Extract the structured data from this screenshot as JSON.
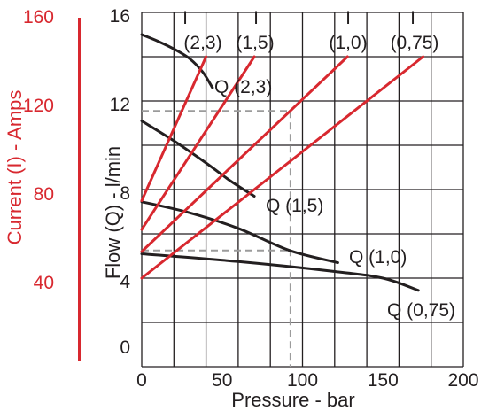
{
  "chart_data": {
    "type": "line",
    "xlabel": "Pressure - bar",
    "ylabel": "Flow (Q) - l/min",
    "y2label": "Current (I) - Amps",
    "xlim": [
      0,
      200
    ],
    "ylim": [
      0,
      16
    ],
    "y2lim": [
      0,
      160
    ],
    "x_ticks": [
      0,
      50,
      100,
      150,
      200
    ],
    "y_ticks": [
      16,
      12,
      8,
      4,
      0
    ],
    "y2_ticks": [
      160,
      120,
      80,
      40
    ],
    "x_grid_step": 20,
    "y_grid_step": 2,
    "grid": true,
    "flow_series": [
      {
        "name": "Q (2,3)",
        "x": [
          0,
          10,
          20,
          30,
          38,
          44
        ],
        "y": [
          15.0,
          14.7,
          14.35,
          13.9,
          13.3,
          12.6
        ]
      },
      {
        "name": "Q (1,5)",
        "x": [
          0,
          20,
          40,
          55,
          70
        ],
        "y": [
          11.1,
          10.2,
          9.2,
          8.4,
          7.7
        ]
      },
      {
        "name": "Q (1,0)",
        "x": [
          0,
          30,
          60,
          92,
          122
        ],
        "y": [
          7.45,
          6.95,
          6.25,
          5.25,
          4.7
        ]
      },
      {
        "name": "Q (0,75)",
        "x": [
          0,
          60,
          120,
          150,
          172
        ],
        "y": [
          5.1,
          4.75,
          4.3,
          4.0,
          3.45
        ]
      }
    ],
    "current_series": [
      {
        "label": [
          "I",
          "(2,3)"
        ],
        "x": [
          0,
          40
        ],
        "y": [
          75,
          140
        ]
      },
      {
        "label": [
          "I",
          "(1,5)"
        ],
        "x": [
          0,
          70
        ],
        "y": [
          62,
          140
        ]
      },
      {
        "label": [
          "I",
          "(1,0)"
        ],
        "x": [
          0,
          128
        ],
        "y": [
          52,
          140
        ]
      },
      {
        "label": [
          "I",
          "(0,75)"
        ],
        "x": [
          0,
          175
        ],
        "y": [
          40,
          140
        ]
      }
    ],
    "guide": {
      "pressure": 92.5,
      "current": 115.5,
      "flow": 5.25
    }
  },
  "colors": {
    "flow": "#231f20",
    "current": "#d8282f",
    "grid": "#231f20",
    "guide": "#9b9b9b"
  }
}
